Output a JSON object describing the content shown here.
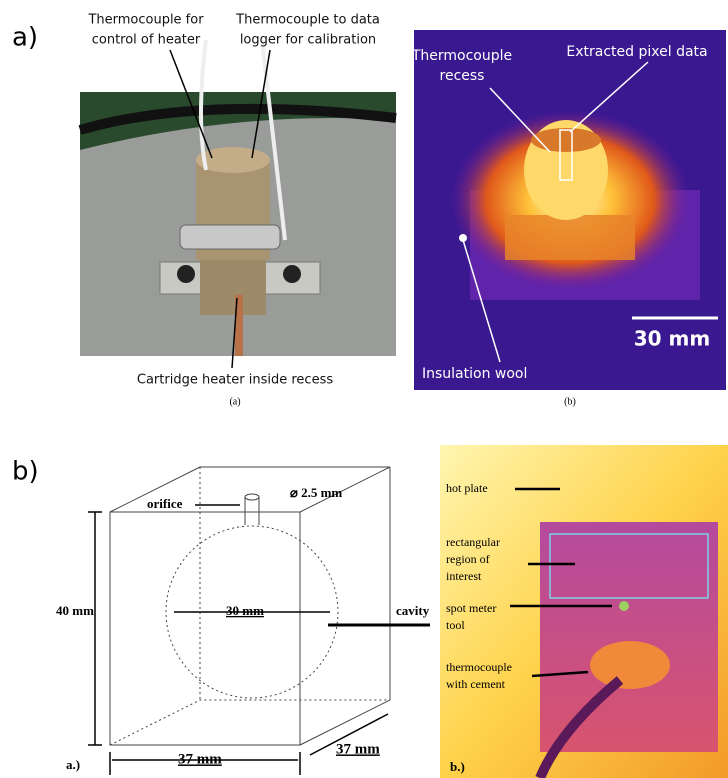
{
  "panel_a": {
    "label": "a)",
    "photo": {
      "control_thermocouple": [
        "Thermocouple for",
        "control of heater"
      ],
      "logger_thermocouple": [
        "Thermocouple to data",
        "logger for calibration"
      ],
      "heater": "Cartridge heater inside recess",
      "caption": "(a)"
    },
    "thermal": {
      "recess": [
        "Thermocouple",
        "recess"
      ],
      "pixel_data": "Extracted pixel data",
      "wool": "Insulation wool",
      "scale": "30 mm",
      "caption": "(b)"
    }
  },
  "panel_b": {
    "label": "b)",
    "schematic": {
      "orifice": "orifice",
      "orifice_diameter": "2.5 mm",
      "height": "40 mm",
      "cavity_diameter": "30 mm",
      "cavity": "cavity",
      "width": "37 mm",
      "depth": "37 mm",
      "caption": "a.)"
    },
    "thermal": {
      "hot_plate": "hot plate",
      "roi": [
        "rectangular",
        "region of",
        "interest"
      ],
      "spot": [
        "spot meter",
        "tool"
      ],
      "thermocouple": [
        "thermocouple",
        "with cement"
      ],
      "caption": "b.)"
    }
  }
}
